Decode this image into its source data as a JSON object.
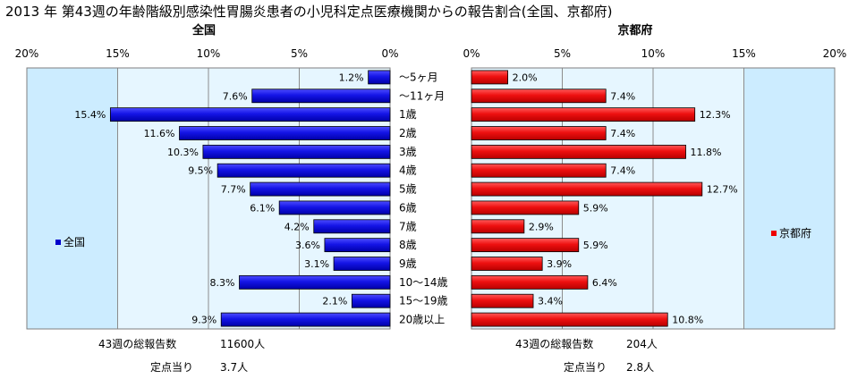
{
  "title": "2013 年 第43週の年齢階級別感染性胃腸炎患者の小児科定点医療機関からの報告割合(全国、京都府)",
  "categories": [
    "～5ヶ月",
    "～11ヶ月",
    "1歳",
    "2歳",
    "3歳",
    "4歳",
    "5歳",
    "6歳",
    "7歳",
    "8歳",
    "9歳",
    "10～14歳",
    "15～19歳",
    "20歳以上"
  ],
  "chart_data": [
    {
      "type": "bar",
      "orientation": "horizontal",
      "panel_title": "全国",
      "categories": [
        "～5ヶ月",
        "～11ヶ月",
        "1歳",
        "2歳",
        "3歳",
        "4歳",
        "5歳",
        "6歳",
        "7歳",
        "8歳",
        "9歳",
        "10～14歳",
        "15～19歳",
        "20歳以上"
      ],
      "series": [
        {
          "name": "全国",
          "values": [
            1.2,
            7.6,
            15.4,
            11.6,
            10.3,
            9.5,
            7.7,
            6.1,
            4.2,
            3.6,
            3.1,
            8.3,
            2.1,
            9.3
          ],
          "labels": [
            "1.2%",
            "7.6%",
            "15.4%",
            "11.6%",
            "10.3%",
            "9.5%",
            "7.7%",
            "6.1%",
            "4.2%",
            "3.6%",
            "3.1%",
            "8.3%",
            "2.1%",
            "9.3%"
          ],
          "color": "#0000cc"
        }
      ],
      "xlim": [
        0,
        20
      ],
      "x_reversed": true,
      "ticks": [
        "20%",
        "15%",
        "10%",
        "5%",
        "0%"
      ],
      "grid": true,
      "legend": "left"
    },
    {
      "type": "bar",
      "orientation": "horizontal",
      "panel_title": "京都府",
      "categories": [
        "～5ヶ月",
        "～11ヶ月",
        "1歳",
        "2歳",
        "3歳",
        "4歳",
        "5歳",
        "6歳",
        "7歳",
        "8歳",
        "9歳",
        "10～14歳",
        "15～19歳",
        "20歳以上"
      ],
      "series": [
        {
          "name": "京都府",
          "values": [
            2.0,
            7.4,
            12.3,
            7.4,
            11.8,
            7.4,
            12.7,
            5.9,
            2.9,
            5.9,
            3.9,
            6.4,
            3.4,
            10.8
          ],
          "labels": [
            "2.0%",
            "7.4%",
            "12.3%",
            "7.4%",
            "11.8%",
            "7.4%",
            "12.7%",
            "5.9%",
            "2.9%",
            "5.9%",
            "3.9%",
            "6.4%",
            "3.4%",
            "10.8%"
          ],
          "color": "#ee0000"
        }
      ],
      "xlim": [
        0,
        20
      ],
      "ticks": [
        "0%",
        "5%",
        "10%",
        "15%",
        "20%"
      ],
      "grid": true,
      "legend": "right"
    }
  ],
  "footer": {
    "national": {
      "total_label": "43週の総報告数",
      "total_value": "11600人",
      "per_site_label": "定点当り",
      "per_site_value": "3.7人"
    },
    "kyoto": {
      "total_label": "43週の総報告数",
      "total_value": "204人",
      "per_site_label": "定点当り",
      "per_site_value": "2.8人"
    }
  },
  "colors": {
    "plot_background": "#ccecff",
    "alt_background": "#e6f6ff",
    "national_bar": "#0000cc",
    "kyoto_bar": "#ee0000"
  }
}
